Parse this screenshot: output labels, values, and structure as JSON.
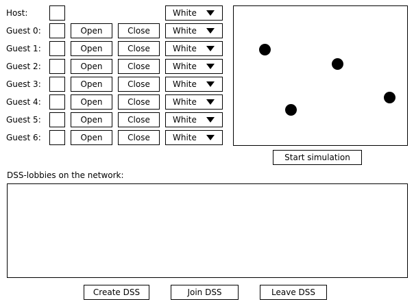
{
  "host": {
    "label": "Host:",
    "color_select": "White"
  },
  "guests": [
    {
      "label": "Guest 0:",
      "open_label": "Open",
      "close_label": "Close",
      "color_select": "White"
    },
    {
      "label": "Guest 1:",
      "open_label": "Open",
      "close_label": "Close",
      "color_select": "White"
    },
    {
      "label": "Guest 2:",
      "open_label": "Open",
      "close_label": "Close",
      "color_select": "White"
    },
    {
      "label": "Guest 3:",
      "open_label": "Open",
      "close_label": "Close",
      "color_select": "White"
    },
    {
      "label": "Guest 4:",
      "open_label": "Open",
      "close_label": "Close",
      "color_select": "White"
    },
    {
      "label": "Guest 5:",
      "open_label": "Open",
      "close_label": "Close",
      "color_select": "White"
    },
    {
      "label": "Guest 6:",
      "open_label": "Open",
      "close_label": "Close",
      "color_select": "White"
    }
  ],
  "simulation": {
    "start_label": "Start simulation"
  },
  "lobbies": {
    "heading": "DSS-lobbies on the network:",
    "items": []
  },
  "footer": {
    "create_label": "Create DSS",
    "join_label": "Join DSS",
    "leave_label": "Leave DSS"
  },
  "icons": {
    "dropdown": "caret-down-icon"
  },
  "colors": {
    "border": "#000000",
    "background": "#ffffff",
    "ball": "#000000"
  }
}
